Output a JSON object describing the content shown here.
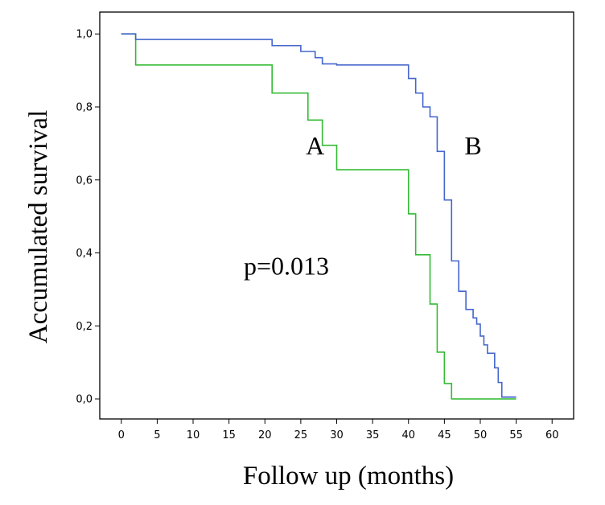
{
  "chart_data": {
    "type": "line",
    "subtype": "step",
    "title": "",
    "xlabel": "Follow up (months)",
    "ylabel": "Accumulated survival",
    "xlim": [
      -3,
      63
    ],
    "ylim": [
      -0.055,
      1.06
    ],
    "xticks": [
      0,
      5,
      10,
      15,
      20,
      25,
      30,
      35,
      40,
      45,
      50,
      55,
      60
    ],
    "yticks": [
      0.0,
      0.2,
      0.4,
      0.6,
      0.8,
      1.0
    ],
    "ytick_labels": [
      "0,0",
      "0,2",
      "0,4",
      "0,6",
      "0,8",
      "1,0"
    ],
    "grid": false,
    "series": [
      {
        "name": "A",
        "color": "#33bb33",
        "x": [
          0,
          2,
          21,
          26,
          28,
          30,
          40,
          41,
          43,
          44,
          45,
          46,
          55
        ],
        "y": [
          1.0,
          0.915,
          0.838,
          0.764,
          0.695,
          0.628,
          0.507,
          0.395,
          0.26,
          0.128,
          0.042,
          0.0,
          0.0
        ]
      },
      {
        "name": "B",
        "color": "#4466cc",
        "x": [
          0,
          2,
          21,
          25,
          27,
          28,
          30,
          40,
          41,
          42,
          43,
          44,
          45,
          46,
          47,
          48,
          49,
          49.5,
          50,
          50.5,
          51,
          52,
          52.5,
          53,
          55
        ],
        "y": [
          1.0,
          0.985,
          0.968,
          0.952,
          0.935,
          0.918,
          0.915,
          0.878,
          0.838,
          0.8,
          0.773,
          0.678,
          0.545,
          0.378,
          0.295,
          0.245,
          0.222,
          0.205,
          0.172,
          0.148,
          0.125,
          0.085,
          0.045,
          0.005,
          0.005
        ]
      }
    ],
    "annotations": [
      {
        "id": "a",
        "text": "A",
        "x": 27,
        "y": 0.67
      },
      {
        "id": "b",
        "text": "B",
        "x": 49,
        "y": 0.67
      },
      {
        "id": "p",
        "text": "p=0.013",
        "x": 23,
        "y": 0.34
      }
    ]
  }
}
